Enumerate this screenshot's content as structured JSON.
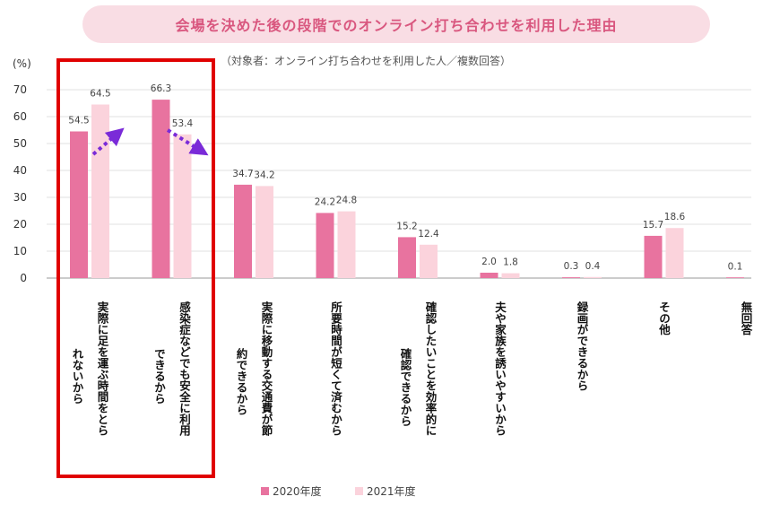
{
  "title": "会場を決めた後の段階でのオンライン打ち合わせを利用した理由",
  "subtitle": "（対象者：オンライン打ち合わせを利用した人／複数回答）",
  "colors": {
    "series_2020": "#e8739f",
    "series_2021": "#fbd3dc",
    "highlight_box": "#e00000",
    "arrow": "#7a2bd8",
    "title_text": "#d9577f",
    "title_bg": "#f9dde4"
  },
  "chart_data": {
    "type": "bar",
    "title": "会場を決めた後の段階でのオンライン打ち合わせを利用した理由",
    "ylabel": "(%)",
    "ylim": [
      0,
      70
    ],
    "yticks": [
      0,
      10,
      20,
      30,
      40,
      50,
      60,
      70
    ],
    "grid": true,
    "legend_position": "bottom",
    "categories": [
      [
        "実際に足を運ぶ時間をとら",
        "れないから"
      ],
      [
        "感染症などでも安全に利用",
        "できるから"
      ],
      [
        "実際に移動する交通費が節",
        "約できるから"
      ],
      [
        "所要時間が短くて済むから"
      ],
      [
        "確認したいことを効率的に",
        "確認できるから"
      ],
      [
        "夫や家族を誘いやすいから"
      ],
      [
        "録画ができるから"
      ],
      [
        "その他"
      ],
      [
        "無回答"
      ]
    ],
    "series": [
      {
        "name": "2020年度",
        "values": [
          54.5,
          66.3,
          34.7,
          24.2,
          15.2,
          2.0,
          0.3,
          15.7,
          0.1
        ],
        "labels": [
          "54.5",
          "66.3",
          "34.7",
          "24.2",
          "15.2",
          "2.0",
          "0.3",
          "15.7",
          "0.1"
        ]
      },
      {
        "name": "2021年度",
        "values": [
          64.5,
          53.4,
          34.2,
          24.8,
          12.4,
          1.8,
          0.4,
          18.6,
          null
        ],
        "labels": [
          "64.5",
          "53.4",
          "34.2",
          "24.8",
          "12.4",
          "1.8",
          "0.4",
          "18.6",
          ""
        ]
      }
    ],
    "highlight_categories": [
      0,
      1
    ],
    "annotations": [
      {
        "type": "arrow",
        "direction": "up",
        "category": 0
      },
      {
        "type": "arrow",
        "direction": "down",
        "category": 1
      }
    ]
  }
}
